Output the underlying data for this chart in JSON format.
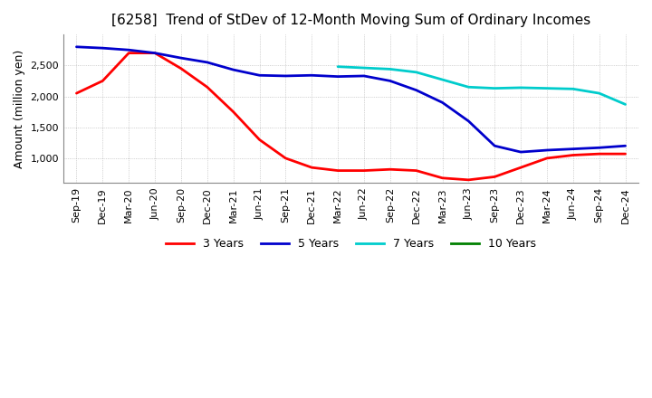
{
  "title": "[6258]  Trend of StDev of 12-Month Moving Sum of Ordinary Incomes",
  "ylabel": "Amount (million yen)",
  "ylim": [
    600,
    3000
  ],
  "yticks": [
    1000,
    1500,
    2000,
    2500
  ],
  "bg": "#ffffff",
  "grid_color": "#aaaaaa",
  "x_labels": [
    "Sep-19",
    "Dec-19",
    "Mar-20",
    "Jun-20",
    "Sep-20",
    "Dec-20",
    "Mar-21",
    "Jun-21",
    "Sep-21",
    "Dec-21",
    "Mar-22",
    "Jun-22",
    "Sep-22",
    "Dec-22",
    "Mar-23",
    "Jun-23",
    "Sep-23",
    "Dec-23",
    "Mar-24",
    "Jun-24",
    "Sep-24",
    "Dec-24"
  ],
  "series": [
    {
      "name": "3 Years",
      "color": "#ff0000",
      "values": [
        2050,
        2250,
        2700,
        2700,
        2450,
        2150,
        1750,
        1300,
        1000,
        850,
        800,
        800,
        820,
        800,
        680,
        650,
        700,
        850,
        1000,
        1050,
        1070,
        1070
      ]
    },
    {
      "name": "5 Years",
      "color": "#0000cc",
      "values": [
        2800,
        2780,
        2750,
        2700,
        2620,
        2550,
        2430,
        2340,
        2330,
        2340,
        2320,
        2330,
        2250,
        2100,
        1900,
        1600,
        1200,
        1100,
        1130,
        1150,
        1170,
        1200
      ]
    },
    {
      "name": "7 Years",
      "color": "#00cccc",
      "values": [
        null,
        null,
        null,
        null,
        null,
        null,
        null,
        null,
        null,
        null,
        2480,
        2460,
        2440,
        2390,
        2270,
        2150,
        2130,
        2140,
        2130,
        2120,
        2050,
        1870
      ]
    },
    {
      "name": "10 Years",
      "color": "#008000",
      "values": [
        null,
        null,
        null,
        null,
        null,
        null,
        null,
        null,
        null,
        null,
        null,
        null,
        null,
        null,
        null,
        null,
        null,
        null,
        null,
        null,
        null,
        null
      ]
    }
  ],
  "lw": 2.0,
  "title_fontsize": 11,
  "label_fontsize": 9,
  "tick_fontsize": 8
}
